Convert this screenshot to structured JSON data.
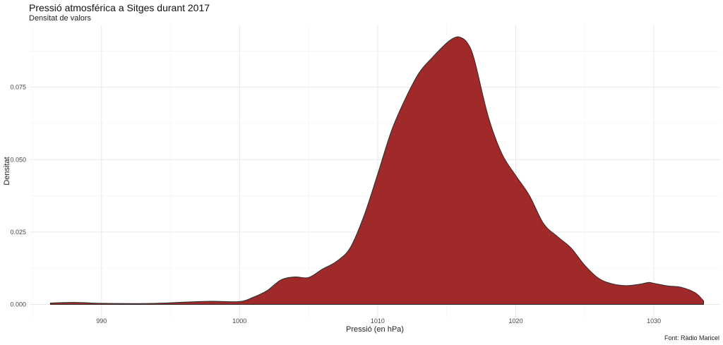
{
  "chart_data": {
    "type": "area",
    "title": "Pressió atmosférica a Sitges durant 2017",
    "subtitle": "Densitat de valors",
    "xlabel": "Pressió (en hPa)",
    "ylabel": "Densitat",
    "caption": "Font: Ràdio Maricel",
    "xlim": [
      984.8,
      1034.8
    ],
    "ylim": [
      -0.0045,
      0.0966
    ],
    "x_ticks": [
      990,
      1000,
      1010,
      1020,
      1030
    ],
    "x_tick_labels": [
      "990",
      "1000",
      "1010",
      "1020",
      "1030"
    ],
    "y_ticks": [
      0,
      0.025,
      0.05,
      0.075
    ],
    "y_tick_labels": [
      "0.000",
      "0.025",
      "0.050",
      "0.075"
    ],
    "grid": true,
    "fill_color": "#A0292A",
    "outline_color": "#2b2b2b",
    "x": [
      986.3,
      988,
      990,
      992,
      994,
      996,
      998,
      1000,
      1001,
      1002,
      1003,
      1004,
      1005,
      1006,
      1007,
      1008,
      1009,
      1010,
      1011,
      1012,
      1013,
      1014,
      1015,
      1015.6,
      1016,
      1016.5,
      1017,
      1018,
      1019,
      1020,
      1021,
      1022,
      1023,
      1024,
      1025,
      1026,
      1027,
      1028,
      1029,
      1029.6,
      1030,
      1031,
      1032,
      1033,
      1033.6
    ],
    "y": [
      0.0005,
      0.0007,
      0.0004,
      0.0003,
      0.0004,
      0.0008,
      0.0011,
      0.001,
      0.0025,
      0.0048,
      0.0085,
      0.0095,
      0.0093,
      0.0122,
      0.0148,
      0.0195,
      0.0305,
      0.045,
      0.06,
      0.071,
      0.08,
      0.0855,
      0.0903,
      0.0922,
      0.0922,
      0.0903,
      0.0845,
      0.065,
      0.052,
      0.0445,
      0.0375,
      0.028,
      0.0235,
      0.0195,
      0.0135,
      0.009,
      0.0071,
      0.0065,
      0.007,
      0.0076,
      0.0073,
      0.0064,
      0.0059,
      0.004,
      0.0012
    ]
  }
}
